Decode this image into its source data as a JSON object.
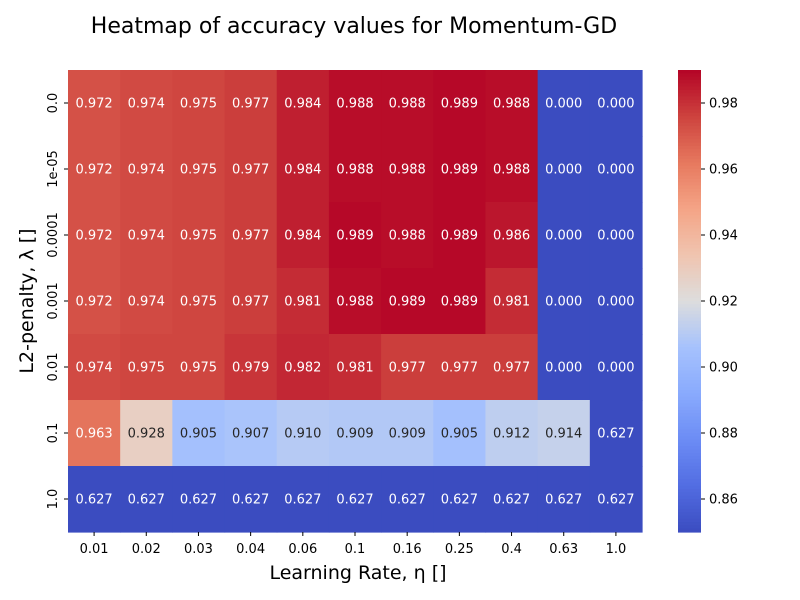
{
  "chart_data": {
    "type": "heatmap",
    "title": "Heatmap of accuracy values for Momentum-GD",
    "xlabel": "Learning Rate, η []",
    "ylabel": "L2-penalty, λ []",
    "x_categories": [
      "0.01",
      "0.02",
      "0.03",
      "0.04",
      "0.06",
      "0.1",
      "0.16",
      "0.25",
      "0.4",
      "0.63",
      "1.0"
    ],
    "y_categories": [
      "0.0",
      "1e-05",
      "0.0001",
      "0.001",
      "0.01",
      "0.1",
      "1.0"
    ],
    "values": [
      [
        "0.972",
        "0.974",
        "0.975",
        "0.977",
        "0.984",
        "0.988",
        "0.988",
        "0.989",
        "0.988",
        "0.000",
        "0.000"
      ],
      [
        "0.972",
        "0.974",
        "0.975",
        "0.977",
        "0.984",
        "0.988",
        "0.988",
        "0.989",
        "0.988",
        "0.000",
        "0.000"
      ],
      [
        "0.972",
        "0.974",
        "0.975",
        "0.977",
        "0.984",
        "0.989",
        "0.988",
        "0.989",
        "0.986",
        "0.000",
        "0.000"
      ],
      [
        "0.972",
        "0.974",
        "0.975",
        "0.977",
        "0.981",
        "0.988",
        "0.989",
        "0.989",
        "0.981",
        "0.000",
        "0.000"
      ],
      [
        "0.974",
        "0.975",
        "0.975",
        "0.979",
        "0.982",
        "0.981",
        "0.977",
        "0.977",
        "0.977",
        "0.000",
        "0.000"
      ],
      [
        "0.963",
        "0.928",
        "0.905",
        "0.907",
        "0.910",
        "0.909",
        "0.909",
        "0.905",
        "0.912",
        "0.914",
        "0.627"
      ],
      [
        "0.627",
        "0.627",
        "0.627",
        "0.627",
        "0.627",
        "0.627",
        "0.627",
        "0.627",
        "0.627",
        "0.627",
        "0.627"
      ]
    ],
    "colormap": "coolwarm",
    "color_range": [
      0.85,
      0.99
    ],
    "colorbar_ticks": [
      "0.86",
      "0.88",
      "0.90",
      "0.92",
      "0.94",
      "0.96",
      "0.98"
    ],
    "grid": false,
    "legend": "none"
  }
}
